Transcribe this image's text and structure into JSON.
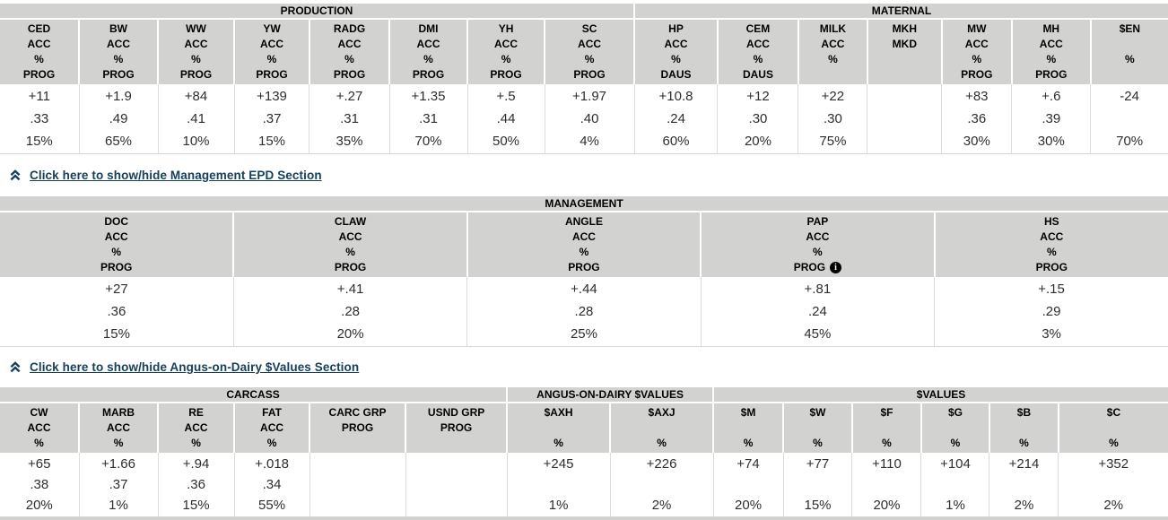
{
  "colors": {
    "link": "#15405d",
    "header_bg": "#d2d2d0",
    "divider": "#dbdbd9",
    "info_icon_bg": "#000000",
    "info_icon_fg": "#ffffff"
  },
  "icons": {
    "toggle": "chevron-double-up",
    "info_glyph": "i"
  },
  "links": [
    {
      "label": "Click here to show/hide Management EPD Section"
    },
    {
      "label": "Click here to show/hide Angus-on-Dairy $Values Section"
    }
  ],
  "tables": [
    {
      "groups": [
        {
          "label": "PRODUCTION",
          "span": 8
        },
        {
          "label": "MATERNAL",
          "span": 7
        }
      ],
      "columns": [
        {
          "header": [
            "CED",
            "ACC",
            "%",
            "PROG"
          ],
          "values": [
            "+11",
            ".33",
            "15%"
          ]
        },
        {
          "header": [
            "BW",
            "ACC",
            "%",
            "PROG"
          ],
          "values": [
            "+1.9",
            ".49",
            "65%"
          ]
        },
        {
          "header": [
            "WW",
            "ACC",
            "%",
            "PROG"
          ],
          "values": [
            "+84",
            ".41",
            "10%"
          ]
        },
        {
          "header": [
            "YW",
            "ACC",
            "%",
            "PROG"
          ],
          "values": [
            "+139",
            ".37",
            "15%"
          ]
        },
        {
          "header": [
            "RADG",
            "ACC",
            "%",
            "PROG"
          ],
          "values": [
            "+.27",
            ".31",
            "35%"
          ]
        },
        {
          "header": [
            "DMI",
            "ACC",
            "%",
            "PROG"
          ],
          "values": [
            "+1.35",
            ".31",
            "70%"
          ]
        },
        {
          "header": [
            "YH",
            "ACC",
            "%",
            "PROG"
          ],
          "values": [
            "+.5",
            ".44",
            "50%"
          ]
        },
        {
          "header": [
            "SC",
            "ACC",
            "%",
            "PROG"
          ],
          "values": [
            "+1.97",
            ".40",
            "4%"
          ]
        },
        {
          "header": [
            "HP",
            "ACC",
            "%",
            "DAUS"
          ],
          "values": [
            "+10.8",
            ".24",
            "60%"
          ]
        },
        {
          "header": [
            "CEM",
            "ACC",
            "%",
            "DAUS"
          ],
          "values": [
            "+12",
            ".30",
            "20%"
          ]
        },
        {
          "header": [
            "MILK",
            "ACC",
            "%",
            ""
          ],
          "values": [
            "+22",
            ".30",
            "75%"
          ]
        },
        {
          "header": [
            "MKH",
            "MKD",
            "",
            ""
          ],
          "values": [
            "",
            "",
            ""
          ]
        },
        {
          "header": [
            "MW",
            "ACC",
            "%",
            "PROG"
          ],
          "values": [
            "+83",
            ".36",
            "30%"
          ]
        },
        {
          "header": [
            "MH",
            "ACC",
            "%",
            "PROG"
          ],
          "values": [
            "+.6",
            ".39",
            "30%"
          ]
        },
        {
          "header": [
            "$EN",
            "",
            "%",
            ""
          ],
          "values": [
            "-24",
            "",
            "70%"
          ]
        }
      ]
    },
    {
      "groups": [
        {
          "label": "MANAGEMENT",
          "span": 5
        }
      ],
      "columns": [
        {
          "header": [
            "DOC",
            "ACC",
            "%",
            "PROG"
          ],
          "values": [
            "+27",
            ".36",
            "15%"
          ]
        },
        {
          "header": [
            "CLAW",
            "ACC",
            "%",
            "PROG"
          ],
          "values": [
            "+.41",
            ".28",
            "20%"
          ]
        },
        {
          "header": [
            "ANGLE",
            "ACC",
            "%",
            "PROG"
          ],
          "values": [
            "+.44",
            ".28",
            "25%"
          ]
        },
        {
          "header": [
            "PAP",
            "ACC",
            "%",
            "PROG"
          ],
          "info_icon": true,
          "values": [
            "+.81",
            ".24",
            "45%"
          ]
        },
        {
          "header": [
            "HS",
            "ACC",
            "%",
            "PROG"
          ],
          "values": [
            "+.15",
            ".29",
            "3%"
          ]
        }
      ]
    },
    {
      "groups": [
        {
          "label": "CARCASS",
          "span": 6
        },
        {
          "label": "ANGUS-ON-DAIRY $VALUES",
          "span": 2
        },
        {
          "label": "$VALUES",
          "span": 6
        }
      ],
      "columns": [
        {
          "header": [
            "CW",
            "ACC",
            "%"
          ],
          "values": [
            "+65",
            ".38",
            "20%"
          ]
        },
        {
          "header": [
            "MARB",
            "ACC",
            "%"
          ],
          "values": [
            "+1.66",
            ".37",
            "1%"
          ]
        },
        {
          "header": [
            "RE",
            "ACC",
            "%"
          ],
          "values": [
            "+.94",
            ".36",
            "15%"
          ]
        },
        {
          "header": [
            "FAT",
            "ACC",
            "%"
          ],
          "values": [
            "+.018",
            ".34",
            "55%"
          ]
        },
        {
          "header": [
            "CARC GRP",
            "PROG",
            ""
          ],
          "values": [
            "",
            "",
            ""
          ]
        },
        {
          "header": [
            "USND GRP",
            "PROG",
            ""
          ],
          "values": [
            "",
            "",
            ""
          ]
        },
        {
          "header": [
            "$AXH",
            "",
            "%"
          ],
          "values": [
            "+245",
            "",
            "1%"
          ]
        },
        {
          "header": [
            "$AXJ",
            "",
            "%"
          ],
          "values": [
            "+226",
            "",
            "2%"
          ]
        },
        {
          "header": [
            "$M",
            "",
            "%"
          ],
          "values": [
            "+74",
            "",
            "20%"
          ]
        },
        {
          "header": [
            "$W",
            "",
            "%"
          ],
          "values": [
            "+77",
            "",
            "15%"
          ]
        },
        {
          "header": [
            "$F",
            "",
            "%"
          ],
          "values": [
            "+110",
            "",
            "20%"
          ]
        },
        {
          "header": [
            "$G",
            "",
            "%"
          ],
          "values": [
            "+104",
            "",
            "1%"
          ]
        },
        {
          "header": [
            "$B",
            "",
            "%"
          ],
          "values": [
            "+214",
            "",
            "2%"
          ]
        },
        {
          "header": [
            "$C",
            "",
            "%"
          ],
          "values": [
            "+352",
            "",
            "2%"
          ]
        }
      ]
    }
  ]
}
